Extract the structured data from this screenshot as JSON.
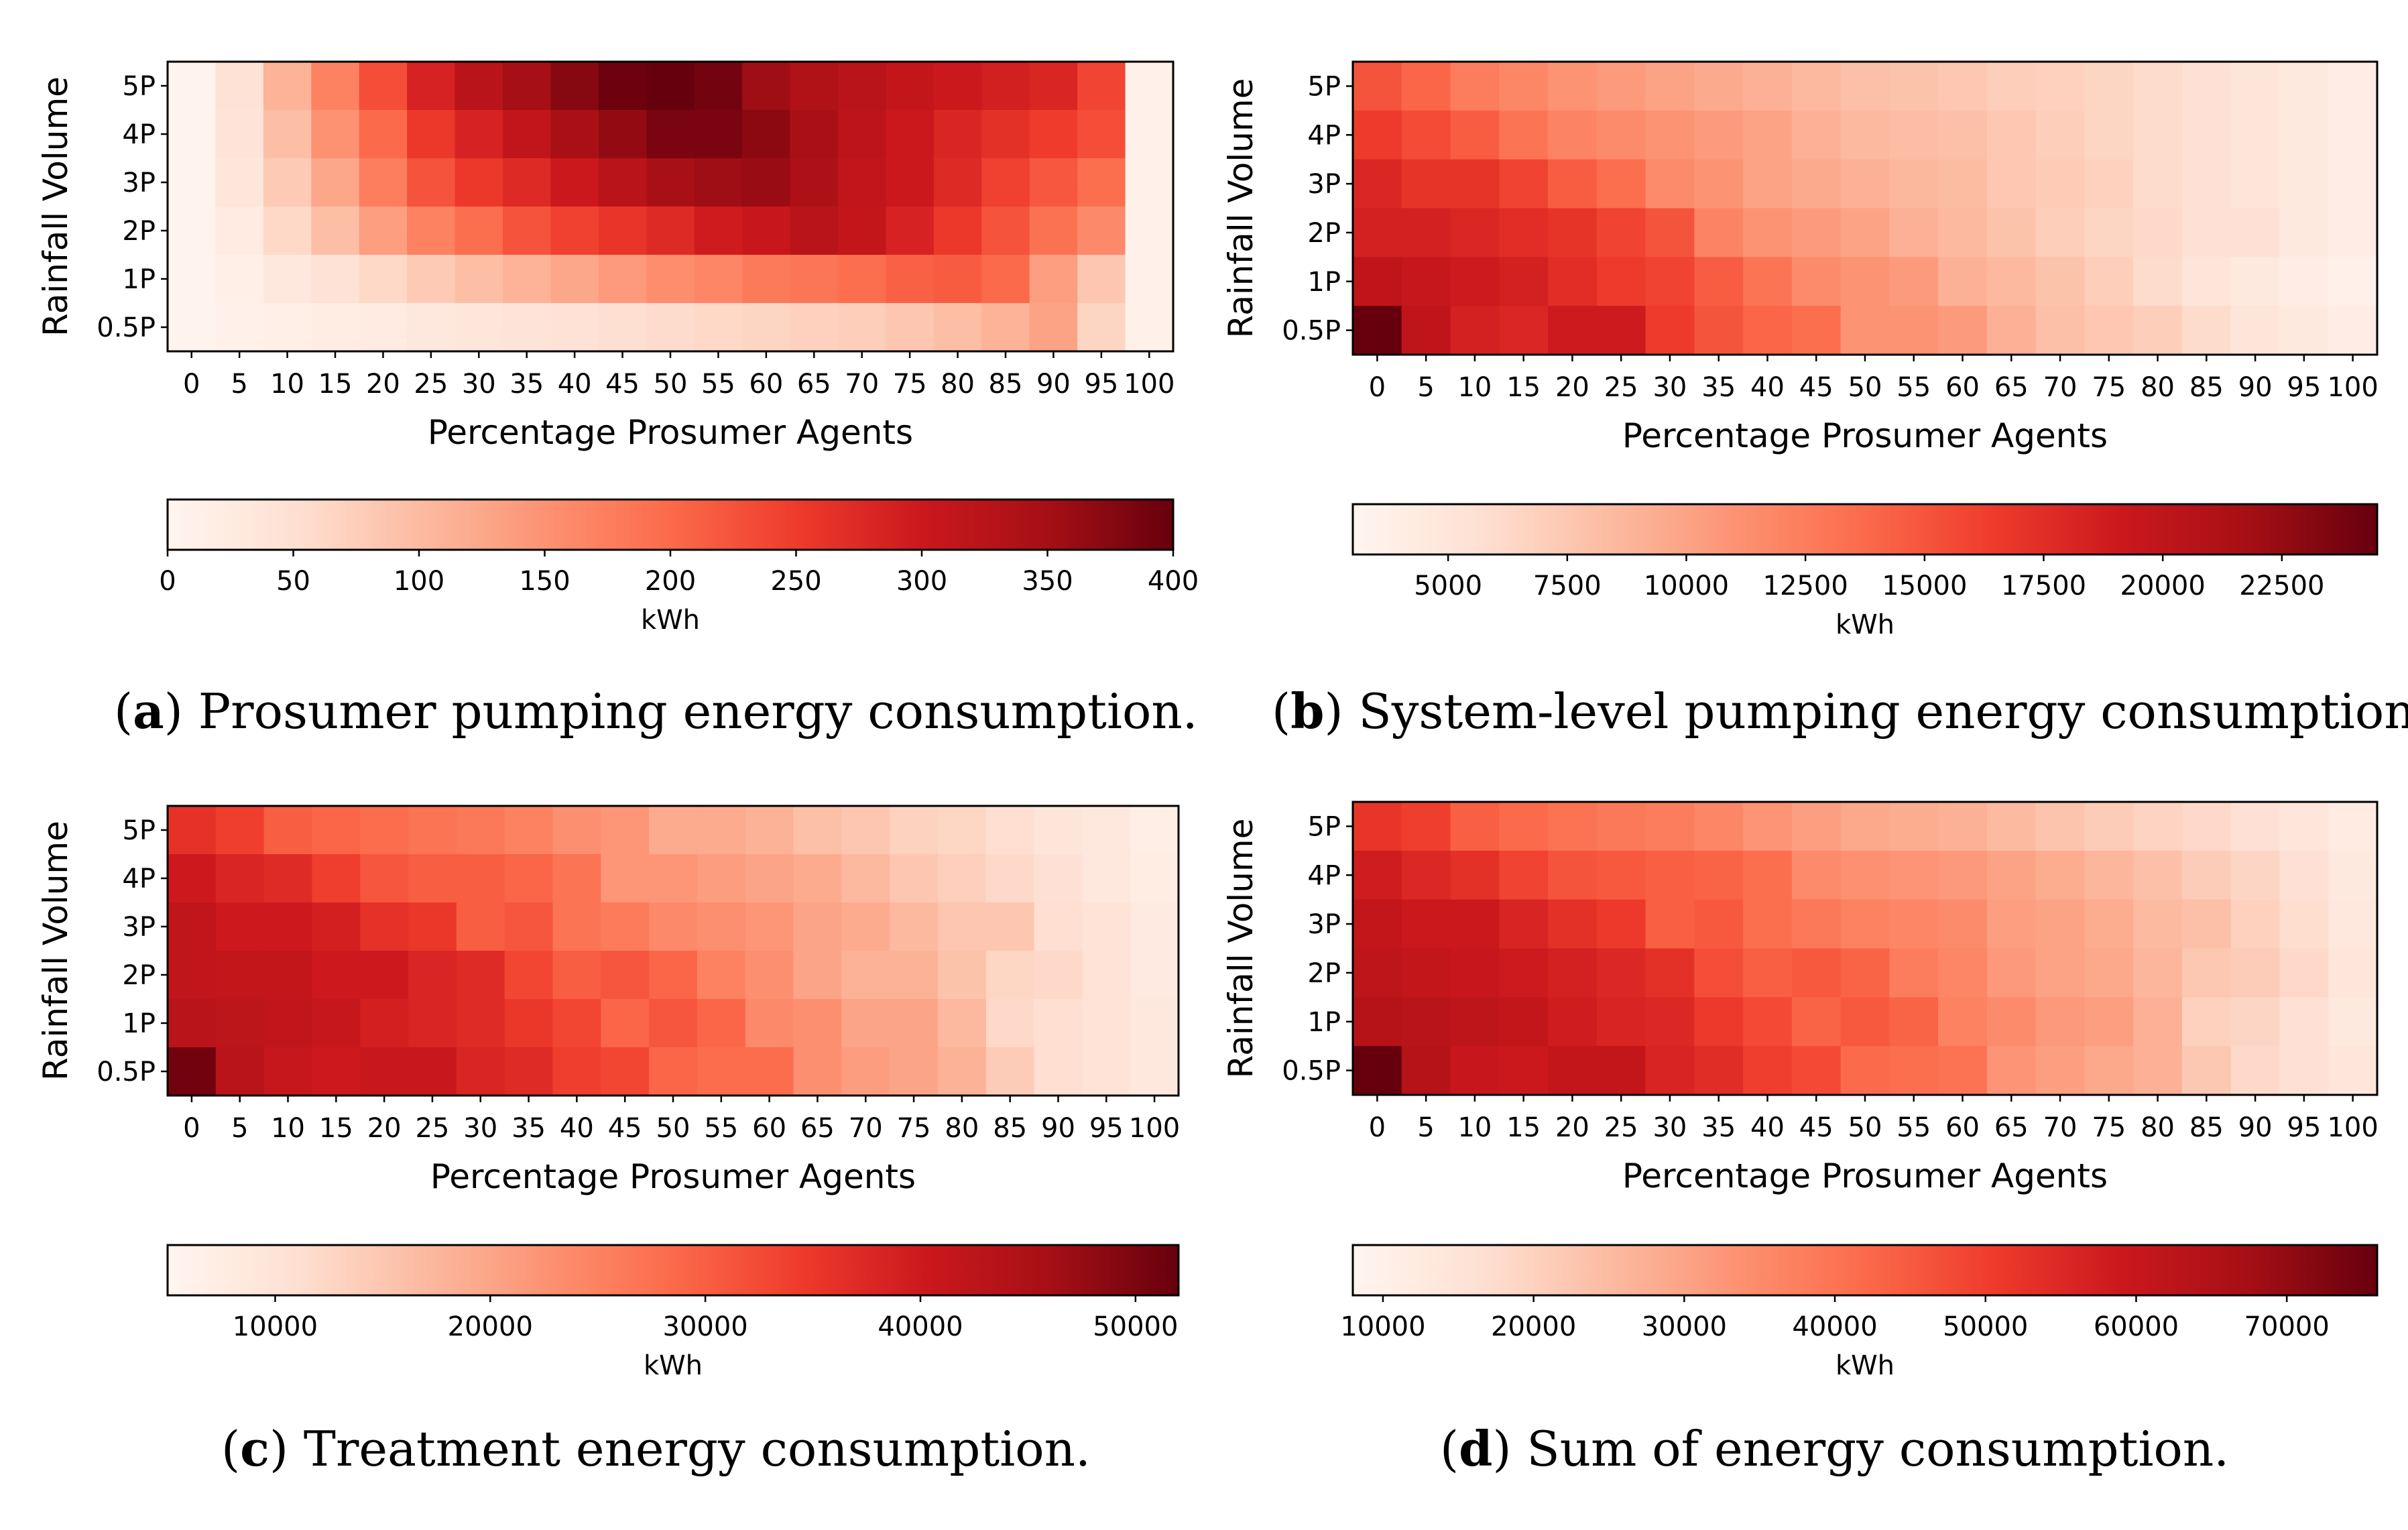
{
  "chart_data": [
    {
      "id": "a",
      "type": "heatmap",
      "xlabel": "Percentage Prosumer Agents",
      "ylabel": "Rainfall Volume",
      "x": [
        "0",
        "5",
        "10",
        "15",
        "20",
        "25",
        "30",
        "35",
        "40",
        "45",
        "50",
        "55",
        "60",
        "65",
        "70",
        "75",
        "80",
        "85",
        "90",
        "95",
        "100"
      ],
      "y": [
        "5P",
        "4P",
        "3P",
        "2P",
        "1P",
        "0.5P"
      ],
      "values": [
        [
          5,
          45,
          110,
          170,
          230,
          285,
          325,
          350,
          375,
          395,
          400,
          390,
          355,
          335,
          325,
          310,
          300,
          290,
          280,
          240,
          10
        ],
        [
          5,
          40,
          95,
          150,
          200,
          255,
          285,
          315,
          345,
          365,
          385,
          385,
          370,
          345,
          320,
          300,
          280,
          265,
          250,
          230,
          10
        ],
        [
          5,
          35,
          80,
          125,
          175,
          225,
          255,
          275,
          300,
          325,
          345,
          355,
          360,
          340,
          315,
          300,
          275,
          245,
          220,
          195,
          10
        ],
        [
          5,
          25,
          60,
          95,
          135,
          170,
          195,
          225,
          245,
          260,
          275,
          295,
          305,
          325,
          310,
          285,
          255,
          225,
          190,
          160,
          10
        ],
        [
          5,
          15,
          30,
          45,
          60,
          80,
          95,
          110,
          125,
          140,
          155,
          165,
          180,
          185,
          195,
          210,
          215,
          200,
          135,
          85,
          10
        ],
        [
          5,
          10,
          15,
          20,
          25,
          30,
          35,
          40,
          45,
          50,
          55,
          60,
          65,
          70,
          75,
          85,
          95,
          110,
          130,
          65,
          10
        ]
      ],
      "vmin": 0,
      "vmax": 400,
      "colorbar": {
        "label": "kWh",
        "ticks": [
          0,
          50,
          100,
          150,
          200,
          250,
          300,
          350,
          400
        ],
        "tick_labels": [
          "0",
          "50",
          "100",
          "150",
          "200",
          "250",
          "300",
          "350",
          "400"
        ]
      },
      "caption_letter": "a",
      "caption_text": " Prosumer pumping energy consumption."
    },
    {
      "id": "b",
      "type": "heatmap",
      "xlabel": "Percentage Prosumer Agents",
      "ylabel": "Rainfall Volume",
      "x": [
        "0",
        "5",
        "10",
        "15",
        "20",
        "25",
        "30",
        "35",
        "40",
        "45",
        "50",
        "55",
        "60",
        "65",
        "70",
        "75",
        "80",
        "85",
        "90",
        "95",
        "100"
      ],
      "y": [
        "5P",
        "4P",
        "3P",
        "2P",
        "1P",
        "0.5P"
      ],
      "values": [
        [
          15000,
          14000,
          12500,
          11800,
          11000,
          10500,
          10000,
          9500,
          9000,
          8500,
          8000,
          7800,
          7500,
          7000,
          6800,
          6500,
          6000,
          5500,
          5000,
          4500,
          4000
        ],
        [
          16500,
          15500,
          14500,
          13000,
          12000,
          11500,
          11000,
          10500,
          10000,
          9000,
          8500,
          8200,
          8000,
          7500,
          7000,
          6500,
          6000,
          5500,
          5000,
          4500,
          4000
        ],
        [
          18000,
          17000,
          17000,
          16000,
          14500,
          13500,
          11500,
          11000,
          10000,
          9500,
          9000,
          8600,
          8300,
          7500,
          7200,
          6800,
          6000,
          5500,
          5000,
          4500,
          4000
        ],
        [
          18500,
          18500,
          18000,
          17500,
          17000,
          16000,
          15000,
          12000,
          11000,
          10500,
          10000,
          9000,
          8500,
          7800,
          7000,
          6500,
          6200,
          5500,
          5500,
          4500,
          4000
        ],
        [
          20000,
          19500,
          19000,
          18500,
          17500,
          16500,
          16000,
          14500,
          13000,
          11500,
          11000,
          10500,
          9000,
          8500,
          7800,
          7000,
          6000,
          5000,
          4500,
          4000,
          3500
        ],
        [
          24500,
          20000,
          18500,
          18000,
          19000,
          19000,
          16500,
          15000,
          14000,
          13500,
          11000,
          11000,
          10500,
          9000,
          8000,
          7500,
          7000,
          6000,
          5000,
          4500,
          4000
        ]
      ],
      "vmin": 3000,
      "vmax": 24500,
      "colorbar": {
        "label": "kWh",
        "ticks": [
          5000,
          7500,
          10000,
          12500,
          15000,
          17500,
          20000,
          22500
        ],
        "tick_labels": [
          "5000",
          "7500",
          "10000",
          "12500",
          "15000",
          "17500",
          "20000",
          "22500"
        ]
      },
      "caption_letter": "b",
      "caption_text": " System-level pumping energy consumption."
    },
    {
      "id": "c",
      "type": "heatmap",
      "xlabel": "Percentage Prosumer Agents",
      "ylabel": "Rainfall Volume",
      "x": [
        "0",
        "5",
        "10",
        "15",
        "20",
        "25",
        "30",
        "35",
        "40",
        "45",
        "50",
        "55",
        "60",
        "65",
        "70",
        "75",
        "80",
        "85",
        "90",
        "95",
        "100"
      ],
      "y": [
        "5P",
        "4P",
        "3P",
        "2P",
        "1P",
        "0.5P"
      ],
      "values": [
        [
          36000,
          34000,
          30000,
          29000,
          28000,
          27000,
          26500,
          25000,
          23000,
          22000,
          19000,
          19000,
          18000,
          16000,
          15000,
          13000,
          12500,
          11000,
          9500,
          8500,
          7000
        ],
        [
          40000,
          38000,
          37000,
          34000,
          31000,
          30000,
          30000,
          29000,
          27000,
          22000,
          22000,
          21000,
          20000,
          19000,
          17000,
          15000,
          13500,
          12000,
          10500,
          9000,
          7500
        ],
        [
          42000,
          40000,
          40000,
          39000,
          36000,
          35000,
          30000,
          31000,
          27000,
          26000,
          24000,
          23000,
          22000,
          20000,
          19000,
          17000,
          15000,
          15000,
          11000,
          10000,
          8000
        ],
        [
          42000,
          41500,
          41500,
          40000,
          40000,
          38000,
          37000,
          33000,
          30000,
          31000,
          29000,
          25000,
          23000,
          20000,
          18000,
          18000,
          15500,
          12500,
          12000,
          10000,
          8000
        ],
        [
          43000,
          42500,
          42000,
          41000,
          39000,
          38000,
          37000,
          35000,
          33000,
          29000,
          31000,
          29000,
          24000,
          23000,
          20000,
          20000,
          17000,
          12000,
          11000,
          10000,
          8500
        ],
        [
          51000,
          43000,
          41000,
          40000,
          40500,
          40500,
          38000,
          37000,
          34000,
          33000,
          29000,
          28000,
          28000,
          23000,
          21000,
          20000,
          18000,
          14000,
          11000,
          10000,
          8500
        ]
      ],
      "vmin": 5000,
      "vmax": 52000,
      "colorbar": {
        "label": "kWh",
        "ticks": [
          10000,
          20000,
          30000,
          40000,
          50000
        ],
        "tick_labels": [
          "10000",
          "20000",
          "30000",
          "40000",
          "50000"
        ]
      },
      "caption_letter": "c",
      "caption_text": " Treatment energy consumption."
    },
    {
      "id": "d",
      "type": "heatmap",
      "xlabel": "Percentage Prosumer Agents",
      "ylabel": "Rainfall Volume",
      "x": [
        "0",
        "5",
        "10",
        "15",
        "20",
        "25",
        "30",
        "35",
        "40",
        "45",
        "50",
        "55",
        "60",
        "65",
        "70",
        "75",
        "80",
        "85",
        "90",
        "95",
        "100"
      ],
      "y": [
        "5P",
        "4P",
        "3P",
        "2P",
        "1P",
        "0.5P"
      ],
      "values": [
        [
          52000,
          50000,
          44000,
          42000,
          40000,
          39000,
          38000,
          36000,
          33000,
          31000,
          29000,
          28000,
          27000,
          25000,
          23000,
          21000,
          19500,
          18000,
          16000,
          14000,
          12000
        ],
        [
          58000,
          55000,
          53000,
          49000,
          46000,
          45000,
          44000,
          43000,
          41000,
          35000,
          34000,
          33000,
          32000,
          30000,
          28000,
          26000,
          24000,
          21000,
          19000,
          16000,
          13000
        ],
        [
          61000,
          59000,
          59000,
          56000,
          53000,
          51000,
          44000,
          45000,
          41000,
          39000,
          37000,
          36000,
          35000,
          31000,
          30000,
          28000,
          25000,
          24000,
          20000,
          17000,
          13500
        ],
        [
          62000,
          61000,
          60000,
          58500,
          57000,
          55000,
          53000,
          47000,
          44000,
          45000,
          43000,
          38000,
          36000,
          32000,
          30000,
          29000,
          26000,
          22000,
          21000,
          18000,
          14000
        ],
        [
          64000,
          63000,
          62000,
          61000,
          58000,
          56000,
          55000,
          51000,
          48000,
          43000,
          45000,
          43000,
          37000,
          35000,
          32000,
          31000,
          27000,
          20000,
          19000,
          16000,
          13000
        ],
        [
          76000,
          64000,
          60000,
          59000,
          61000,
          61000,
          56000,
          54000,
          50000,
          48000,
          42000,
          41000,
          40000,
          33000,
          31000,
          29000,
          27000,
          22000,
          18000,
          16000,
          14000
        ]
      ],
      "vmin": 8000,
      "vmax": 76000,
      "colorbar": {
        "label": "kWh",
        "ticks": [
          10000,
          20000,
          30000,
          40000,
          50000,
          60000,
          70000
        ],
        "tick_labels": [
          "10000",
          "20000",
          "30000",
          "40000",
          "50000",
          "60000",
          "70000"
        ]
      },
      "caption_letter": "d",
      "caption_text": " Sum of energy consumption."
    }
  ]
}
